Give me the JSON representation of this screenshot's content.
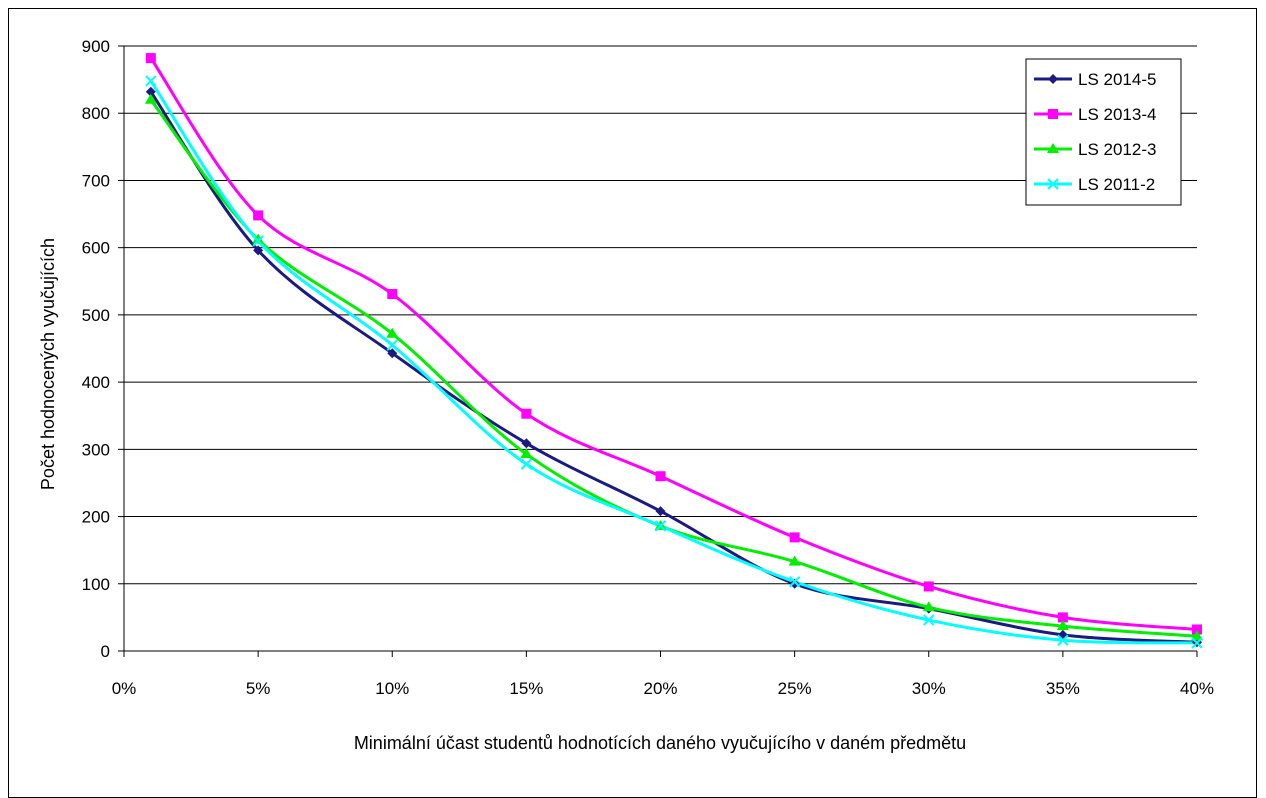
{
  "chart_data": {
    "type": "line",
    "title": "",
    "xlabel": "Minimální účast studentů hodnotících daného vyučujícího v daném předmětu",
    "ylabel": "Počet hodnocených vyučujících",
    "x_ticks": [
      "0%",
      "5%",
      "10%",
      "15%",
      "20%",
      "25%",
      "30%",
      "35%",
      "40%"
    ],
    "y_ticks": [
      "0",
      "100",
      "200",
      "300",
      "400",
      "500",
      "600",
      "700",
      "800",
      "900"
    ],
    "xlim": [
      0,
      40
    ],
    "ylim": [
      0,
      900
    ],
    "grid": "horizontal",
    "legend_position": "top-right",
    "smooth": true,
    "x": [
      1,
      5,
      10,
      15,
      20,
      25,
      30,
      35,
      40
    ],
    "series": [
      {
        "name": "LS 2014-5",
        "color": "#1a1a80",
        "marker": "diamond",
        "values": [
          832,
          596,
          443,
          309,
          208,
          100,
          63,
          24,
          13
        ]
      },
      {
        "name": "LS 2013-4",
        "color": "#ff00ff",
        "marker": "square",
        "values": [
          882,
          648,
          531,
          353,
          260,
          169,
          96,
          50,
          32
        ]
      },
      {
        "name": "LS 2012-3",
        "color": "#00ee00",
        "marker": "triangle",
        "values": [
          820,
          612,
          472,
          293,
          186,
          133,
          65,
          37,
          22
        ]
      },
      {
        "name": "LS 2011-2",
        "color": "#00ffff",
        "marker": "cross",
        "values": [
          848,
          610,
          455,
          278,
          186,
          103,
          46,
          16,
          12
        ]
      }
    ]
  }
}
